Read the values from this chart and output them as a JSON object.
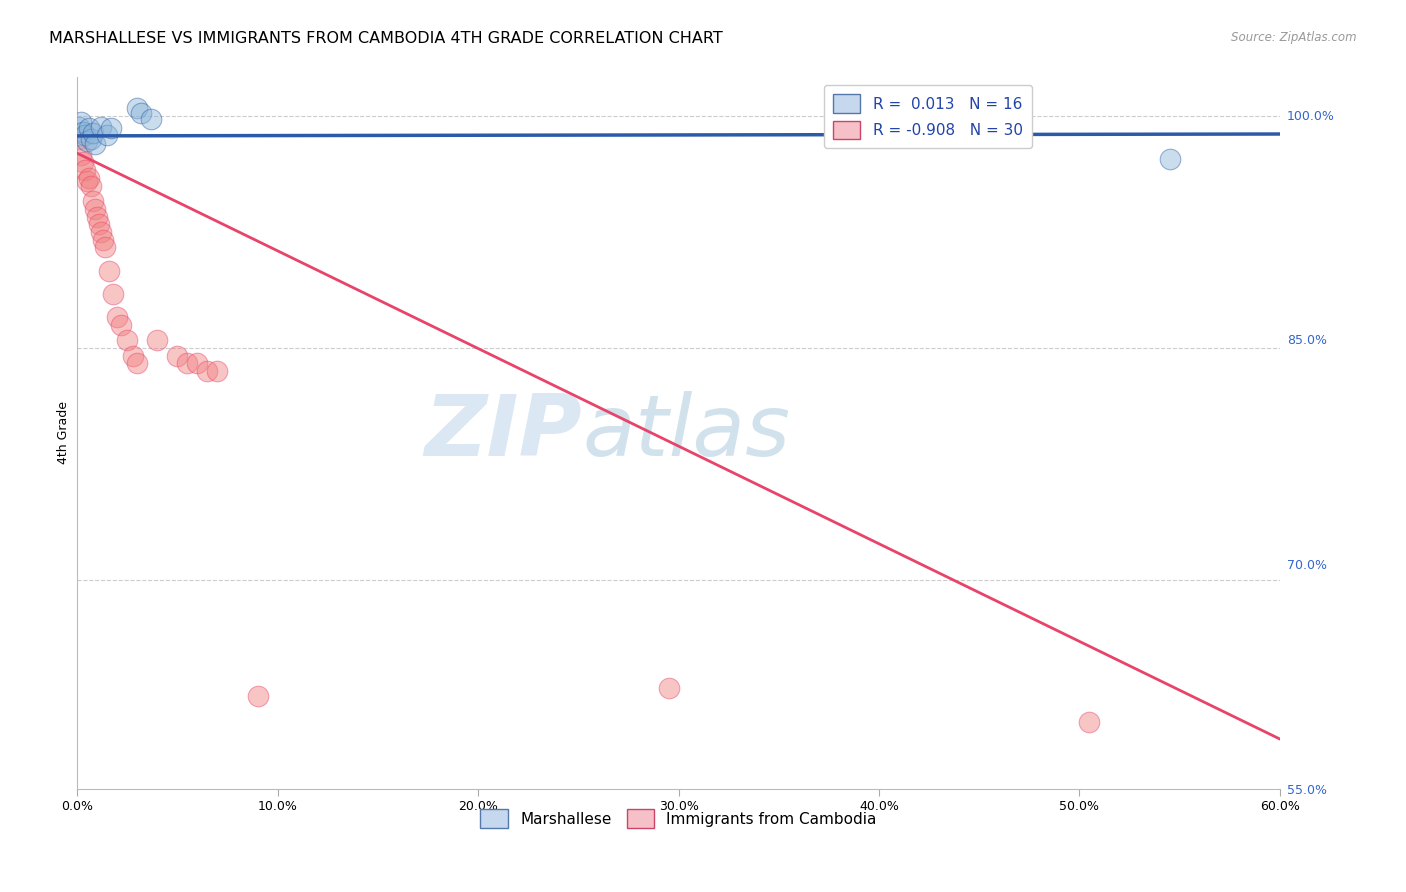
{
  "title": "MARSHALLESE VS IMMIGRANTS FROM CAMBODIA 4TH GRADE CORRELATION CHART",
  "source": "Source: ZipAtlas.com",
  "ylabel": "4th Grade",
  "watermark_zip": "ZIP",
  "watermark_atlas": "atlas",
  "legend_blue_label": "Marshallese",
  "legend_pink_label": "Immigrants from Cambodia",
  "blue_R": 0.013,
  "blue_N": 16,
  "pink_R": -0.908,
  "pink_N": 30,
  "xmin": 0.0,
  "xmax": 0.6,
  "ymin": 0.565,
  "ymax": 1.025,
  "yticks": [
    1.0,
    0.85,
    0.7,
    0.55
  ],
  "ytick_labels": [
    "100.0%",
    "85.0%",
    "70.0%",
    "55.0%"
  ],
  "xticks": [
    0.0,
    0.1,
    0.2,
    0.3,
    0.4,
    0.5,
    0.6
  ],
  "blue_scatter_x": [
    0.001,
    0.002,
    0.003,
    0.004,
    0.005,
    0.006,
    0.007,
    0.008,
    0.009,
    0.012,
    0.015,
    0.017,
    0.03,
    0.032,
    0.037,
    0.545
  ],
  "blue_scatter_y": [
    0.993,
    0.996,
    0.99,
    0.988,
    0.984,
    0.992,
    0.985,
    0.989,
    0.982,
    0.993,
    0.988,
    0.992,
    1.005,
    1.002,
    0.998,
    0.972
  ],
  "pink_scatter_x": [
    0.001,
    0.002,
    0.003,
    0.004,
    0.005,
    0.006,
    0.007,
    0.008,
    0.009,
    0.01,
    0.011,
    0.012,
    0.013,
    0.014,
    0.016,
    0.018,
    0.02,
    0.022,
    0.025,
    0.028,
    0.03,
    0.04,
    0.05,
    0.055,
    0.06,
    0.065,
    0.07,
    0.09,
    0.295,
    0.505
  ],
  "pink_scatter_y": [
    0.985,
    0.975,
    0.97,
    0.965,
    0.958,
    0.96,
    0.955,
    0.945,
    0.94,
    0.935,
    0.93,
    0.925,
    0.92,
    0.915,
    0.9,
    0.885,
    0.87,
    0.865,
    0.855,
    0.845,
    0.84,
    0.855,
    0.845,
    0.84,
    0.84,
    0.835,
    0.835,
    0.625,
    0.63,
    0.608
  ],
  "blue_color": "#8BB4D8",
  "pink_color": "#F08080",
  "blue_line_color": "#2B5BA8",
  "pink_line_color": "#E8446A",
  "grid_color": "#CCCCCC",
  "background_color": "#FFFFFF",
  "title_fontsize": 11.5,
  "axis_label_fontsize": 9,
  "tick_label_fontsize": 9,
  "legend_fontsize": 11,
  "blue_trend_x": [
    0.0,
    0.6
  ],
  "blue_trend_y": [
    0.9872,
    0.9884
  ],
  "pink_trend_x": [
    0.0,
    0.6
  ],
  "pink_trend_y": [
    0.976,
    0.597
  ]
}
